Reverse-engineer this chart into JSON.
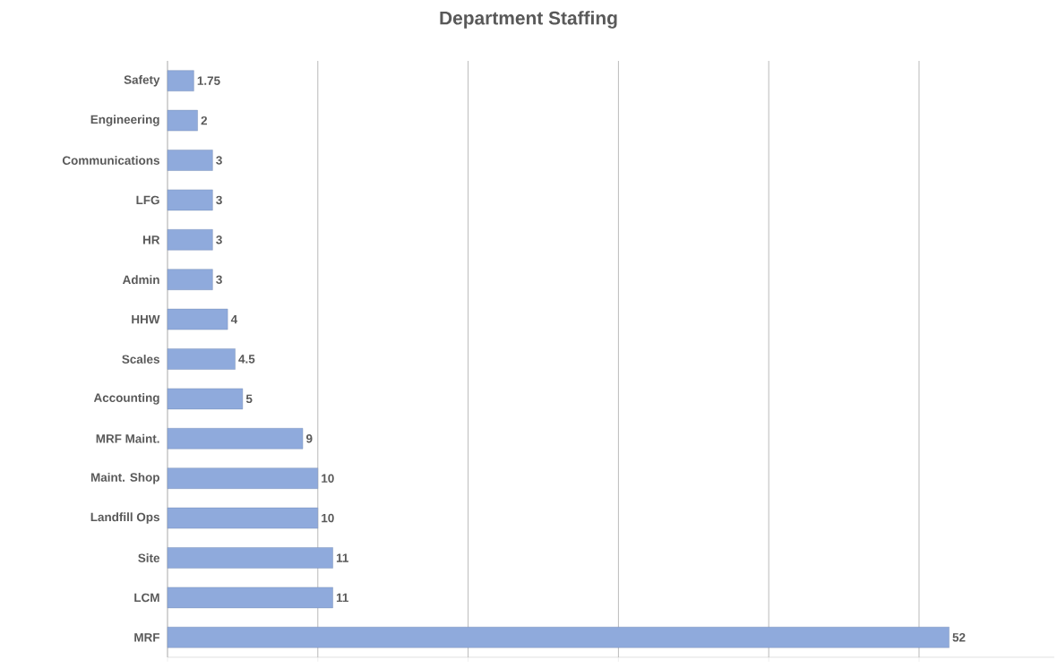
{
  "chart_data": {
    "type": "bar",
    "orientation": "horizontal",
    "title": "Department Staffing",
    "categories": [
      "Safety",
      "Engineering",
      "Communications",
      "LFG",
      "HR",
      "Admin",
      "HHW",
      "Scales",
      "Accounting",
      "MRF Maint.",
      "Maint. Shop",
      "Landfill Ops",
      "Site",
      "LCM",
      "MRF"
    ],
    "values": [
      1.75,
      2,
      3,
      3,
      3,
      3,
      4,
      4.5,
      5,
      9,
      10,
      10,
      11,
      11,
      52
    ],
    "color": "#8faadc",
    "data_labels": true,
    "grid": "x",
    "tick_labels": "y",
    "xlim": [
      0,
      59
    ],
    "xticks": [
      {
        "value": 0,
        "label": null
      },
      {
        "value": 10,
        "label": null
      },
      {
        "value": 20,
        "label": null
      },
      {
        "value": 30,
        "label": null
      },
      {
        "value": 40,
        "label": null
      },
      {
        "value": 50,
        "label": null
      }
    ]
  }
}
